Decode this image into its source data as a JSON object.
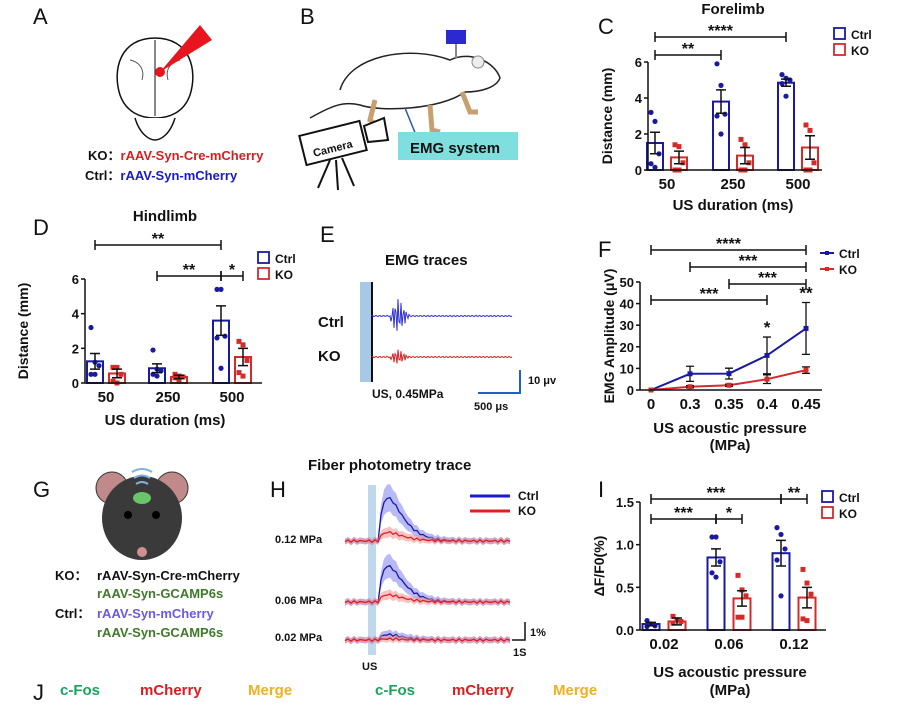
{
  "panels": {
    "a": "A",
    "b": "B",
    "c": "C",
    "d": "D",
    "e": "E",
    "f": "F",
    "g": "G",
    "h": "H",
    "i": "I",
    "j": "J"
  },
  "panel_a": {
    "ko_prefix": "KO：",
    "ko_text": "rAAV-Syn-Cre-mCherry",
    "ctrl_prefix": "Ctrl：",
    "ctrl_text": "rAAV-Syn-mCherry"
  },
  "panel_b": {
    "camera": "Camera",
    "emg": "EMG system"
  },
  "panel_e": {
    "title": "EMG traces",
    "ctrl": "Ctrl",
    "ko": "KO",
    "stim": "US, 0.45MPa",
    "scale_y": "10 μv",
    "scale_x": "500 μs"
  },
  "panel_g": {
    "ko_prefix": "KO：",
    "ko_line1": "rAAV-Syn-Cre-mCherry",
    "ko_line2": "rAAV-Syn-GCAMP6s",
    "ctrl_prefix": "Ctrl：",
    "ctrl_line1": "rAAV-Syn-mCherry",
    "ctrl_line2": "rAAV-Syn-GCAMP6s"
  },
  "panel_h": {
    "title": "Fiber photometry trace",
    "legend": [
      "Ctrl",
      "KO"
    ],
    "rows": [
      "0.12 MPa",
      "0.06 MPa",
      "0.02 MPa"
    ],
    "scale_y": "1%",
    "scale_x": "1S",
    "stim": "US"
  },
  "panel_j": {
    "labels": [
      "c-Fos",
      "mCherry",
      "Merge",
      "c-Fos",
      "mCherry",
      "Merge"
    ],
    "colors": [
      "#1aa35a",
      "#d42020",
      "#f0b020",
      "#1aa35a",
      "#d42020",
      "#f0b020"
    ]
  },
  "colors": {
    "ctrl": "#1a1aa0",
    "ko": "#d42a2a"
  },
  "chart_data": [
    {
      "id": "C",
      "type": "bar",
      "title": "Forelimb",
      "xlabel": "US duration (ms)",
      "ylabel": "Distance (mm)",
      "categories": [
        "50",
        "250",
        "500"
      ],
      "ylim": [
        0,
        6
      ],
      "yticks": [
        "0",
        "2",
        "4",
        "6"
      ],
      "legend": [
        "Ctrl",
        "KO"
      ],
      "series": [
        {
          "name": "Ctrl",
          "values": [
            1.5,
            3.8,
            4.85
          ],
          "sem": [
            0.6,
            0.65,
            0.2
          ],
          "points": [
            [
              3.2,
              2.7,
              0.9,
              0.35,
              0.15
            ],
            [
              5.9,
              4.7,
              3.1,
              3.0,
              2.0
            ],
            [
              5.3,
              5.1,
              5.0,
              4.8,
              4.1
            ]
          ]
        },
        {
          "name": "KO",
          "values": [
            0.7,
            0.8,
            1.25
          ],
          "sem": [
            0.35,
            0.45,
            0.65
          ],
          "points": [
            [
              1.4,
              1.3,
              0.4,
              0.0,
              0.0
            ],
            [
              1.7,
              1.4,
              0.4,
              0.0,
              0.0
            ],
            [
              2.5,
              2.2,
              0.4,
              0.0,
              0.0
            ]
          ]
        }
      ],
      "significance": [
        {
          "label": "****",
          "from": [
            0,
            0
          ],
          "to": [
            2,
            0
          ]
        },
        {
          "label": "**",
          "from": [
            0,
            0
          ],
          "to": [
            1,
            0
          ]
        },
        {
          "label": "**",
          "from": [
            1,
            0
          ],
          "to": [
            1,
            1
          ]
        },
        {
          "label": "****",
          "from": [
            2,
            0
          ],
          "to": [
            2,
            1
          ]
        }
      ]
    },
    {
      "id": "D",
      "type": "bar",
      "title": "Hindlimb",
      "xlabel": "US duration (ms)",
      "ylabel": "Distance (mm)",
      "categories": [
        "50",
        "250",
        "500"
      ],
      "ylim": [
        0,
        6
      ],
      "yticks": [
        "0",
        "2",
        "4",
        "6"
      ],
      "legend": [
        "Ctrl",
        "KO"
      ],
      "series": [
        {
          "name": "Ctrl",
          "values": [
            1.25,
            0.85,
            3.6
          ],
          "sem": [
            0.45,
            0.25,
            0.85
          ],
          "points": [
            [
              3.2,
              1.2,
              1.0,
              0.5,
              0.5
            ],
            [
              1.9,
              0.8,
              0.7,
              0.5,
              0.4
            ],
            [
              5.4,
              5.4,
              2.7,
              2.6,
              0.85
            ]
          ]
        },
        {
          "name": "KO",
          "values": [
            0.55,
            0.35,
            1.5
          ],
          "sem": [
            0.25,
            0.1,
            0.5
          ],
          "points": [
            [
              0.9,
              0.9,
              0.5,
              0.1,
              0.0
            ],
            [
              0.5,
              0.4,
              0.35,
              0.3,
              0.2
            ],
            [
              2.4,
              2.2,
              1.3,
              0.6,
              0.4
            ]
          ]
        }
      ],
      "significance": [
        {
          "label": "**",
          "from": [
            0,
            0
          ],
          "to": [
            2,
            0
          ]
        },
        {
          "label": "**",
          "from": [
            1,
            0
          ],
          "to": [
            2,
            0
          ]
        },
        {
          "label": "*",
          "from": [
            2,
            0
          ],
          "to": [
            2,
            1
          ]
        }
      ]
    },
    {
      "id": "F",
      "type": "line",
      "xlabel": "US acoustic pressure",
      "xlabel2": "(MPa)",
      "ylabel": "EMG Amplitude (μV)",
      "x": [
        "0",
        "0.3",
        "0.35",
        "0.4",
        "0.45"
      ],
      "ylim": [
        0,
        50
      ],
      "yticks": [
        "0",
        "10",
        "20",
        "30",
        "40",
        "50"
      ],
      "legend": [
        "Ctrl",
        "KO"
      ],
      "series": [
        {
          "name": "Ctrl",
          "values": [
            0,
            7.5,
            7.6,
            16,
            28.5
          ],
          "err": [
            0,
            3.5,
            2.5,
            8.5,
            12
          ]
        },
        {
          "name": "KO",
          "values": [
            0,
            1.5,
            2.2,
            5,
            9.2
          ],
          "err": [
            0,
            0.5,
            0.5,
            2,
            1.5
          ]
        }
      ],
      "significance": [
        {
          "label": "****",
          "from": 0,
          "to": 4
        },
        {
          "label": "***",
          "from": 1,
          "to": 4
        },
        {
          "label": "***",
          "from": 2,
          "to": 4
        },
        {
          "label": "***",
          "from": 0,
          "to": 3
        }
      ],
      "point_marks": [
        {
          "label": "*",
          "at": 3
        },
        {
          "label": "**",
          "at": 4
        }
      ]
    },
    {
      "id": "I",
      "type": "bar",
      "xlabel": "US acoustic pressure",
      "xlabel2": "(MPa)",
      "ylabel": "ΔF/F0(%)",
      "categories": [
        "0.02",
        "0.06",
        "0.12"
      ],
      "ylim": [
        0,
        1.5
      ],
      "yticks": [
        "0.0",
        "0.5",
        "1.0",
        "1.5"
      ],
      "legend": [
        "Ctrl",
        "KO"
      ],
      "series": [
        {
          "name": "Ctrl",
          "values": [
            0.07,
            0.85,
            0.9
          ],
          "sem": [
            0.02,
            0.1,
            0.15
          ],
          "points": [
            [
              0.11,
              0.07,
              0.05,
              0.04
            ],
            [
              1.09,
              1.09,
              0.8,
              0.67,
              0.62
            ],
            [
              1.2,
              1.12,
              0.95,
              0.82,
              0.4
            ]
          ]
        },
        {
          "name": "KO",
          "values": [
            0.1,
            0.37,
            0.38
          ],
          "sem": [
            0.04,
            0.09,
            0.12
          ],
          "points": [
            [
              0.16,
              0.12,
              0.1,
              0.08
            ],
            [
              0.64,
              0.47,
              0.4,
              0.15,
              0.15
            ],
            [
              0.71,
              0.55,
              0.42,
              0.13,
              0.11
            ]
          ]
        }
      ],
      "significance": [
        {
          "label": "***",
          "from": [
            0,
            0
          ],
          "to": [
            2,
            0
          ]
        },
        {
          "label": "**",
          "from": [
            2,
            0
          ],
          "to": [
            2,
            1
          ]
        },
        {
          "label": "***",
          "from": [
            0,
            0
          ],
          "to": [
            1,
            0
          ]
        },
        {
          "label": "*",
          "from": [
            1,
            0
          ],
          "to": [
            1,
            1
          ]
        }
      ]
    }
  ]
}
